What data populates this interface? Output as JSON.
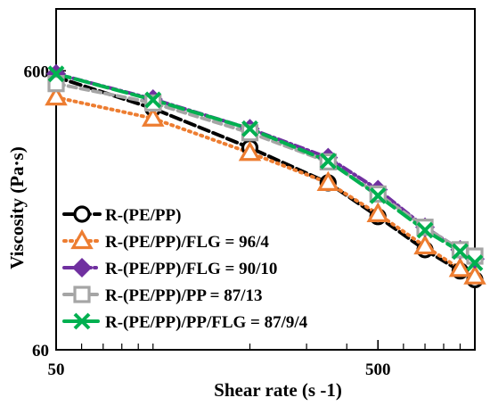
{
  "chart_data": {
    "type": "line",
    "title": "",
    "xlabel": "Shear rate (s -1)",
    "ylabel": "Viscosity (Pa·s)",
    "xscale": "log",
    "yscale": "log",
    "xlim": [
      50,
      1000
    ],
    "ylim": [
      60,
      1000
    ],
    "x_tick_labels": [
      "50",
      "500"
    ],
    "y_tick_labels": [
      "60",
      "600"
    ],
    "x_ticks": [
      50,
      500
    ],
    "y_ticks": [
      60,
      600
    ],
    "grid": false,
    "legend_position": "bottom-left",
    "x": [
      50,
      100,
      200,
      350,
      500,
      700,
      900,
      1000
    ],
    "series": [
      {
        "name": "R-(PE/PP)",
        "marker": "circle",
        "line": "dashed",
        "color": "#000000",
        "values": [
          570,
          440,
          318,
          238,
          180,
          137,
          115,
          107
        ]
      },
      {
        "name": "R-(PE/PP)/FLG = 96/4",
        "marker": "triangle",
        "line": "dotted",
        "color": "#ED7D31",
        "values": [
          482,
          405,
          305,
          238,
          184,
          141,
          117,
          110
        ]
      },
      {
        "name": "R-(PE/PP)/FLG = 90/10",
        "marker": "diamond",
        "line": "dash-dot",
        "color": "#7030A0",
        "values": [
          585,
          475,
          372,
          293,
          225,
          165,
          137,
          127
        ]
      },
      {
        "name": "R-(PE/PP)/PP = 87/13",
        "marker": "square",
        "line": "dash",
        "color": "#A5A5A5",
        "values": [
          540,
          460,
          360,
          283,
          217,
          165,
          137,
          130
        ]
      },
      {
        "name": "R-(PE/PP)/PP/FLG = 87/9/4",
        "marker": "x",
        "line": "long-dash",
        "color": "#00B050",
        "values": [
          585,
          472,
          372,
          285,
          214,
          161,
          135,
          123
        ]
      }
    ]
  }
}
